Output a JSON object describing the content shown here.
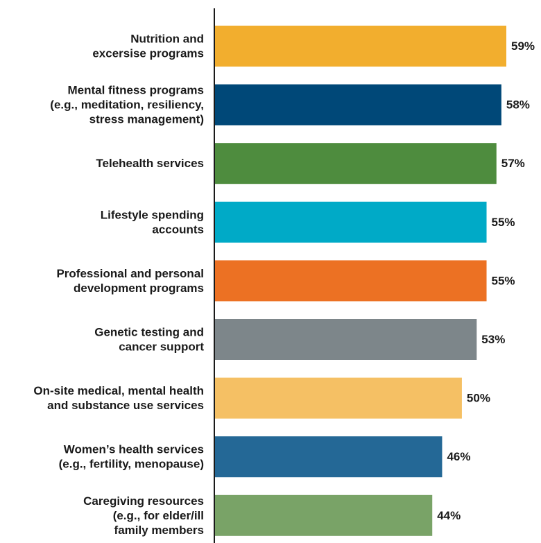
{
  "chart_data": {
    "type": "bar",
    "orientation": "horizontal",
    "title": "",
    "xlabel": "",
    "ylabel": "",
    "value_suffix": "%",
    "categories": [
      [
        "Nutrition and",
        "excersise programs"
      ],
      [
        "Mental fitness programs",
        "(e.g., meditation, resiliency,",
        "stress management)"
      ],
      [
        "Telehealth services"
      ],
      [
        "Lifestyle spending",
        "accounts"
      ],
      [
        "Professional and personal",
        "development programs"
      ],
      [
        "Genetic testing and",
        "cancer support"
      ],
      [
        "On-site medical, mental health",
        "and substance use services"
      ],
      [
        "Women’s health services",
        "(e.g., fertility, menopause)"
      ],
      [
        "Caregiving resources",
        "(e.g., for elder/ill",
        "family members"
      ]
    ],
    "values": [
      59,
      58,
      57,
      55,
      55,
      53,
      50,
      46,
      44
    ],
    "value_labels": [
      "59%",
      "58%",
      "57%",
      "55%",
      "55%",
      "53%",
      "50%",
      "46%",
      "44%"
    ],
    "colors": [
      "#F2AE2E",
      "#004878",
      "#4E8C3E",
      "#00AAC7",
      "#EC7123",
      "#7D868A",
      "#F5C064",
      "#246896",
      "#79A367"
    ],
    "xlim": [
      0,
      59
    ],
    "grid": false,
    "legend": "none"
  }
}
